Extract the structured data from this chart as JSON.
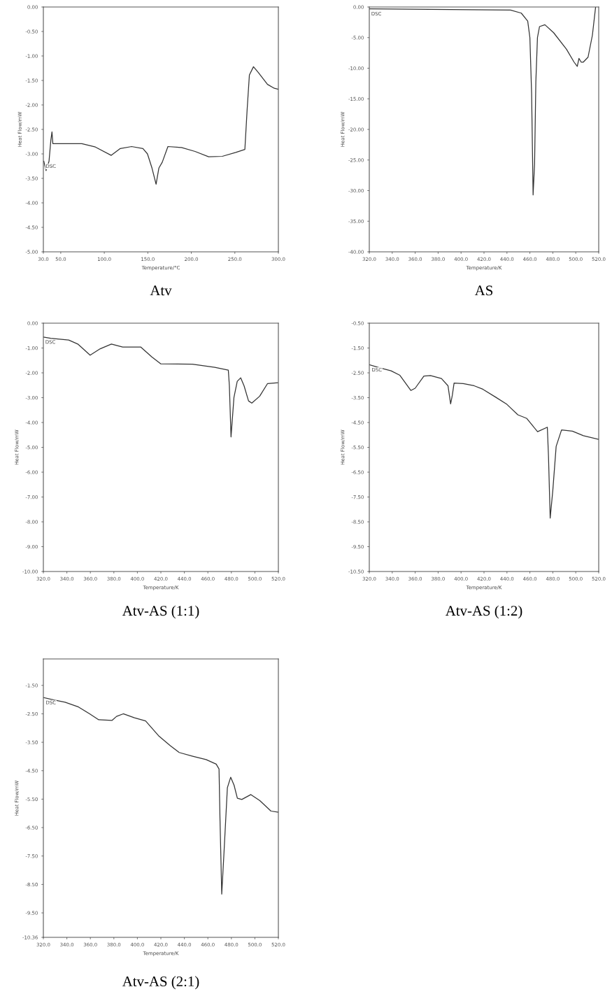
{
  "chart_data": [
    {
      "type": "line",
      "title": "Atv",
      "xlabel": "Temperature/°C",
      "ylabel": "Heat Flow/mW",
      "annotations": [
        "DSC"
      ],
      "series": [
        {
          "color": "#333333",
          "x": [
            30.5,
            33.1,
            36.5,
            38.6,
            39.9,
            40.9,
            74.2,
            89.8,
            108,
            118.4,
            131.4,
            144.4,
            149.6,
            154.8,
            159.5,
            162.7,
            166.6,
            173.1,
            188.7,
            204.3,
            219.9,
            235.5,
            251.1,
            261.5,
            264.1,
            266.7,
            271.4,
            277.1,
            287.5,
            295.3,
            300
          ],
          "values": [
            -3.15,
            -3.34,
            -3.15,
            -2.72,
            -2.55,
            -2.79,
            -2.79,
            -2.86,
            -3.03,
            -2.89,
            -2.85,
            -2.89,
            -3.0,
            -3.29,
            -3.62,
            -3.29,
            -3.17,
            -2.85,
            -2.87,
            -2.95,
            -3.06,
            -3.05,
            -2.97,
            -2.91,
            -2.1,
            -1.39,
            -1.22,
            -1.34,
            -1.58,
            -1.66,
            -1.68
          ]
        }
      ],
      "xlim": [
        30,
        300
      ],
      "ylim": [
        -5,
        0
      ],
      "xticks": [
        {
          "value": 30,
          "label": "30.0"
        },
        {
          "value": 50,
          "label": "50.0"
        },
        {
          "value": 100,
          "label": "100.0"
        },
        {
          "value": 150,
          "label": "150.0"
        },
        {
          "value": 200,
          "label": "200.0"
        },
        {
          "value": 250,
          "label": "250.0"
        },
        {
          "value": 300,
          "label": "300.0"
        }
      ],
      "yticks": [
        {
          "value": 0,
          "label": "0.00"
        },
        {
          "value": -0.5,
          "label": "-0.50"
        },
        {
          "value": -1,
          "label": "-1.00"
        },
        {
          "value": -1.5,
          "label": "-1.50"
        },
        {
          "value": -2,
          "label": "-2.00"
        },
        {
          "value": -2.5,
          "label": "-2.50"
        },
        {
          "value": -3,
          "label": "-3.00"
        },
        {
          "value": -3.5,
          "label": "-3.50"
        },
        {
          "value": -4,
          "label": "-4.00"
        },
        {
          "value": -4.5,
          "label": "-4.50"
        },
        {
          "value": -5,
          "label": "-5.00"
        }
      ]
    },
    {
      "type": "line",
      "title": "AS",
      "xlabel": "Temperature/K",
      "ylabel": "Heat Flow/mW",
      "annotations": [
        "DSC"
      ],
      "series": [
        {
          "color": "#333333",
          "x": [
            320,
            443.1,
            452.5,
            458.1,
            460,
            461.5,
            462.8,
            464.1,
            465.2,
            466.6,
            468.4,
            473.1,
            480.7,
            491.9,
            498.5,
            501.3,
            502.8,
            504.7,
            506.6,
            510.7,
            514.5,
            517.3
          ],
          "values": [
            -0.3,
            -0.5,
            -1.0,
            -2.3,
            -5.0,
            -14.1,
            -30.7,
            -25.6,
            -12.2,
            -5.0,
            -3.2,
            -2.9,
            -4.2,
            -6.9,
            -9.0,
            -9.7,
            -8.4,
            -9.0,
            -9.0,
            -8.2,
            -4.6,
            0
          ]
        }
      ],
      "xlim": [
        320,
        520
      ],
      "ylim": [
        -40,
        0
      ],
      "xticks": [
        {
          "value": 320,
          "label": "320.0"
        },
        {
          "value": 340,
          "label": "340.0"
        },
        {
          "value": 360,
          "label": "360.0"
        },
        {
          "value": 380,
          "label": "380.0"
        },
        {
          "value": 400,
          "label": "400.0"
        },
        {
          "value": 420,
          "label": "420.0"
        },
        {
          "value": 440,
          "label": "440.0"
        },
        {
          "value": 460,
          "label": "460.0"
        },
        {
          "value": 480,
          "label": "480.0"
        },
        {
          "value": 500,
          "label": "500.0"
        },
        {
          "value": 520,
          "label": "520.0"
        }
      ],
      "yticks": [
        {
          "value": 0,
          "label": "0.00"
        },
        {
          "value": -5,
          "label": "-5.00"
        },
        {
          "value": -10,
          "label": "-10.00"
        },
        {
          "value": -15,
          "label": "-15.00"
        },
        {
          "value": -20,
          "label": "-20.00"
        },
        {
          "value": -25,
          "label": "-25.00"
        },
        {
          "value": -30,
          "label": "-30.00"
        },
        {
          "value": -35,
          "label": "-35.00"
        },
        {
          "value": -40,
          "label": "-40.00"
        }
      ]
    },
    {
      "type": "line",
      "title": "Atv-AS (1:1)",
      "xlabel": "Temperature/K",
      "ylabel": "Heat Flow/mW",
      "annotations": [
        "DSC"
      ],
      "series": [
        {
          "color": "#333333",
          "x": [
            320,
            326.3,
            341.6,
            349.3,
            359.8,
            368.4,
            377.9,
            387.5,
            402.8,
            412.3,
            420,
            446.8,
            465.9,
            477.4,
            478.3,
            479.7,
            482.2,
            485,
            487.9,
            490.8,
            494.6,
            497.4,
            504.1,
            510.8,
            519.4
          ],
          "values": [
            -0.56,
            -0.61,
            -0.68,
            -0.84,
            -1.29,
            -1.03,
            -0.84,
            -0.96,
            -0.96,
            -1.36,
            -1.64,
            -1.65,
            -1.78,
            -1.89,
            -2.52,
            -4.58,
            -2.99,
            -2.34,
            -2.2,
            -2.52,
            -3.13,
            -3.22,
            -2.94,
            -2.43,
            -2.4
          ]
        }
      ],
      "xlim": [
        320,
        520
      ],
      "ylim": [
        -10,
        0
      ],
      "xticks": [
        {
          "value": 320,
          "label": "320.0"
        },
        {
          "value": 340,
          "label": "340.0"
        },
        {
          "value": 360,
          "label": "360.0"
        },
        {
          "value": 380,
          "label": "380.0"
        },
        {
          "value": 400,
          "label": "400.0"
        },
        {
          "value": 420,
          "label": "420.0"
        },
        {
          "value": 440,
          "label": "440.0"
        },
        {
          "value": 460,
          "label": "460.0"
        },
        {
          "value": 480,
          "label": "480.0"
        },
        {
          "value": 500,
          "label": "500.0"
        },
        {
          "value": 520,
          "label": "520.0"
        }
      ],
      "yticks": [
        {
          "value": 0,
          "label": "0.00"
        },
        {
          "value": -1,
          "label": "-1.00"
        },
        {
          "value": -2,
          "label": "-2.00"
        },
        {
          "value": -3,
          "label": "-3.00"
        },
        {
          "value": -4,
          "label": "-4.00"
        },
        {
          "value": -5,
          "label": "-5.00"
        },
        {
          "value": -6,
          "label": "-6.00"
        },
        {
          "value": -7,
          "label": "-7.00"
        },
        {
          "value": -8,
          "label": "-8.00"
        },
        {
          "value": -9,
          "label": "-9.00"
        },
        {
          "value": -10,
          "label": "-10.00"
        }
      ]
    },
    {
      "type": "line",
      "title": "Atv-AS (1:2)",
      "xlabel": "Temperature/K",
      "ylabel": "Heat Flow/mW",
      "annotations": [
        "DSC"
      ],
      "series": [
        {
          "color": "#333333",
          "x": [
            320.4,
            327.6,
            339,
            346.7,
            356.2,
            360,
            367.6,
            373.3,
            382.9,
            388.6,
            390.9,
            392.4,
            393.9,
            401.9,
            411.4,
            419,
            430.5,
            440,
            449.5,
            457.1,
            466.7,
            475.2,
            476.2,
            477.7,
            480,
            482.9,
            487.6,
            497.1,
            506.7,
            520
          ],
          "values": [
            -2.18,
            -2.28,
            -2.42,
            -2.6,
            -3.21,
            -3.12,
            -2.63,
            -2.61,
            -2.73,
            -3.02,
            -3.75,
            -3.4,
            -2.91,
            -2.93,
            -3.02,
            -3.16,
            -3.49,
            -3.77,
            -4.19,
            -4.33,
            -4.87,
            -4.69,
            -5.83,
            -8.35,
            -7.23,
            -5.46,
            -4.8,
            -4.85,
            -5.03,
            -5.18
          ]
        }
      ],
      "xlim": [
        320,
        520
      ],
      "ylim": [
        -10.5,
        -0.5
      ],
      "xticks": [
        {
          "value": 320,
          "label": "320.0"
        },
        {
          "value": 340,
          "label": "340.0"
        },
        {
          "value": 360,
          "label": "360.0"
        },
        {
          "value": 380,
          "label": "380.0"
        },
        {
          "value": 400,
          "label": "400.0"
        },
        {
          "value": 420,
          "label": "420.0"
        },
        {
          "value": 440,
          "label": "440.0"
        },
        {
          "value": 460,
          "label": "460.0"
        },
        {
          "value": 480,
          "label": "480.0"
        },
        {
          "value": 500,
          "label": "500.0"
        },
        {
          "value": 520,
          "label": "520.0"
        }
      ],
      "yticks": [
        {
          "value": -0.5,
          "label": "-0.50"
        },
        {
          "value": -1.5,
          "label": "-1.50"
        },
        {
          "value": -2.5,
          "label": "-2.50"
        },
        {
          "value": -3.5,
          "label": "-3.50"
        },
        {
          "value": -4.5,
          "label": "-4.50"
        },
        {
          "value": -5.5,
          "label": "-5.50"
        },
        {
          "value": -6.5,
          "label": "-6.50"
        },
        {
          "value": -7.5,
          "label": "-7.50"
        },
        {
          "value": -8.5,
          "label": "-8.50"
        },
        {
          "value": -9.5,
          "label": "-9.50"
        },
        {
          "value": -10.5,
          "label": "-10.50"
        }
      ]
    },
    {
      "type": "line",
      "title": "Atv-AS (2:1)",
      "xlabel": "Temperature/K",
      "ylabel": "Heat Flow/mW",
      "annotations": [
        "DSC"
      ],
      "series": [
        {
          "color": "#333333",
          "x": [
            320.4,
            329,
            338.5,
            349.9,
            359.4,
            367.1,
            378.5,
            382.3,
            388,
            397.5,
            407,
            418.5,
            428,
            435.6,
            447.1,
            458.5,
            467.1,
            469.5,
            470.3,
            471.8,
            473.7,
            476.6,
            479.4,
            482.3,
            485.1,
            488.9,
            496.6,
            504.2,
            513.7,
            520
          ],
          "values": [
            -1.93,
            -2.01,
            -2.09,
            -2.26,
            -2.5,
            -2.71,
            -2.73,
            -2.59,
            -2.5,
            -2.64,
            -2.75,
            -3.29,
            -3.62,
            -3.86,
            -3.99,
            -4.11,
            -4.27,
            -4.44,
            -6.17,
            -8.84,
            -7.4,
            -5.1,
            -4.73,
            -5.01,
            -5.47,
            -5.51,
            -5.34,
            -5.55,
            -5.92,
            -5.96
          ]
        }
      ],
      "xlim": [
        320,
        520
      ],
      "ylim": [
        -10.36,
        -0.57
      ],
      "xticks": [
        {
          "value": 320,
          "label": "320.0"
        },
        {
          "value": 340,
          "label": "340.0"
        },
        {
          "value": 360,
          "label": "360.0"
        },
        {
          "value": 380,
          "label": "380.0"
        },
        {
          "value": 400,
          "label": "400.0"
        },
        {
          "value": 420,
          "label": "420.0"
        },
        {
          "value": 440,
          "label": "440.0"
        },
        {
          "value": 460,
          "label": "460.0"
        },
        {
          "value": 480,
          "label": "480.0"
        },
        {
          "value": 500,
          "label": "500.0"
        },
        {
          "value": 520,
          "label": "520.0"
        }
      ],
      "yticks": [
        {
          "value": -1.5,
          "label": "-1.50"
        },
        {
          "value": -2.5,
          "label": "-2.50"
        },
        {
          "value": -3.5,
          "label": "-3.50"
        },
        {
          "value": -4.5,
          "label": "-4.50"
        },
        {
          "value": -5.5,
          "label": "-5.50"
        },
        {
          "value": -6.5,
          "label": "-6.50"
        },
        {
          "value": -7.5,
          "label": "-7.50"
        },
        {
          "value": -8.5,
          "label": "-8.50"
        },
        {
          "value": -9.5,
          "label": "-9.50"
        },
        {
          "value": -10.36,
          "label": "-10.36"
        }
      ]
    }
  ]
}
